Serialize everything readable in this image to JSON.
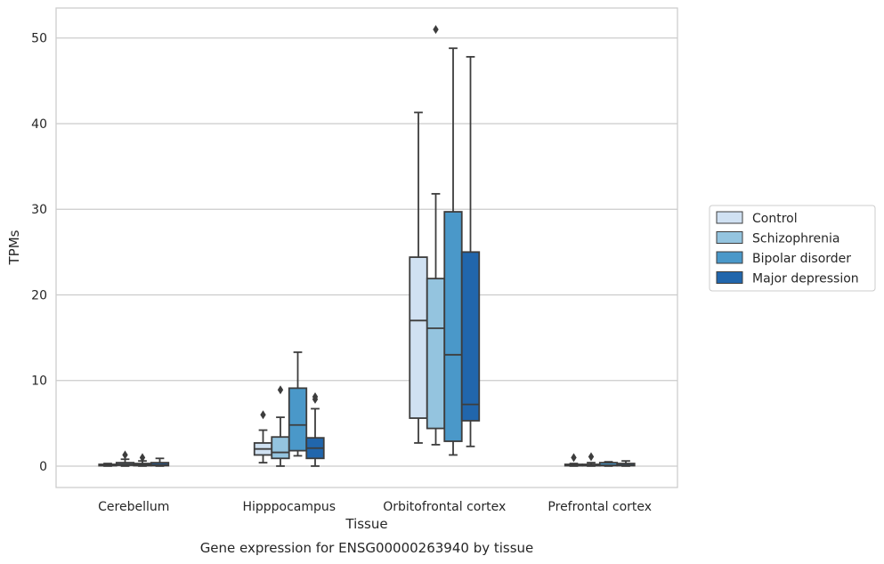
{
  "caption": "Gene expression for ENSG00000263940 by tissue",
  "chart_data": {
    "type": "box",
    "xlabel": "Tissue",
    "ylabel": "TPMs",
    "ylim": [
      -2.5,
      53.5
    ],
    "yticks": [
      0,
      10,
      20,
      30,
      40,
      50
    ],
    "grid": true,
    "legend_position": "right",
    "categories": [
      "Cerebellum",
      "Hipppocampus",
      "Orbitofrontal cortex",
      "Prefrontal cortex"
    ],
    "series": [
      {
        "name": "Control",
        "color": "#d0e1f2",
        "boxes": [
          {
            "whislo": 0.0,
            "q1": 0.05,
            "med": 0.1,
            "q3": 0.2,
            "whishi": 0.3,
            "fliers": []
          },
          {
            "whislo": 0.4,
            "q1": 1.3,
            "med": 2.0,
            "q3": 2.7,
            "whishi": 4.2,
            "fliers": [
              6.0
            ]
          },
          {
            "whislo": 2.7,
            "q1": 5.6,
            "med": 17.0,
            "q3": 24.4,
            "whishi": 41.3,
            "fliers": []
          },
          {
            "whislo": 0.0,
            "q1": 0.05,
            "med": 0.1,
            "q3": 0.2,
            "whishi": 0.3,
            "fliers": [
              1.0
            ]
          }
        ]
      },
      {
        "name": "Schizophrenia",
        "color": "#94c4df",
        "boxes": [
          {
            "whislo": 0.0,
            "q1": 0.1,
            "med": 0.2,
            "q3": 0.4,
            "whishi": 0.8,
            "fliers": [
              1.3
            ]
          },
          {
            "whislo": 0.0,
            "q1": 0.9,
            "med": 1.6,
            "q3": 3.4,
            "whishi": 5.7,
            "fliers": [
              8.9
            ]
          },
          {
            "whislo": 2.5,
            "q1": 4.4,
            "med": 16.1,
            "q3": 21.9,
            "whishi": 31.8,
            "fliers": [
              51.0
            ]
          },
          {
            "whislo": 0.0,
            "q1": 0.05,
            "med": 0.1,
            "q3": 0.2,
            "whishi": 0.4,
            "fliers": [
              1.1
            ]
          }
        ]
      },
      {
        "name": "Bipolar disorder",
        "color": "#4a98c9",
        "boxes": [
          {
            "whislo": 0.0,
            "q1": 0.05,
            "med": 0.15,
            "q3": 0.3,
            "whishi": 0.6,
            "fliers": [
              1.0
            ]
          },
          {
            "whislo": 1.2,
            "q1": 1.8,
            "med": 4.8,
            "q3": 9.1,
            "whishi": 13.3,
            "fliers": []
          },
          {
            "whislo": 1.3,
            "q1": 2.9,
            "med": 13.0,
            "q3": 29.7,
            "whishi": 48.8,
            "fliers": []
          },
          {
            "whislo": 0.0,
            "q1": 0.05,
            "med": 0.1,
            "q3": 0.4,
            "whishi": 0.5,
            "fliers": []
          }
        ]
      },
      {
        "name": "Major depression",
        "color": "#2166ac",
        "boxes": [
          {
            "whislo": 0.0,
            "q1": 0.05,
            "med": 0.15,
            "q3": 0.4,
            "whishi": 0.9,
            "fliers": []
          },
          {
            "whislo": 0.0,
            "q1": 0.9,
            "med": 2.1,
            "q3": 3.3,
            "whishi": 6.7,
            "fliers": [
              7.8,
              8.1
            ]
          },
          {
            "whislo": 2.3,
            "q1": 5.3,
            "med": 7.2,
            "q3": 25.0,
            "whishi": 47.8,
            "fliers": []
          },
          {
            "whislo": 0.0,
            "q1": 0.05,
            "med": 0.1,
            "q3": 0.3,
            "whishi": 0.6,
            "fliers": []
          }
        ]
      }
    ]
  }
}
